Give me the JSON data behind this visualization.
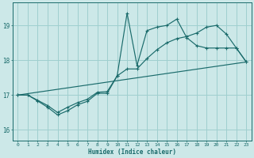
{
  "xlabel": "Humidex (Indice chaleur)",
  "bg_color": "#cce8e8",
  "grid_color": "#9fcfcf",
  "line_color": "#1a6b6b",
  "xlim": [
    -0.5,
    23.5
  ],
  "ylim": [
    15.7,
    19.65
  ],
  "yticks": [
    16,
    17,
    18,
    19
  ],
  "xticks": [
    0,
    1,
    2,
    3,
    4,
    5,
    6,
    7,
    8,
    9,
    10,
    11,
    12,
    13,
    14,
    15,
    16,
    17,
    18,
    19,
    20,
    21,
    22,
    23
  ],
  "line1_x": [
    0,
    1,
    2,
    3,
    4,
    5,
    6,
    7,
    8,
    9,
    10,
    11,
    12,
    13,
    14,
    15,
    16,
    17,
    18,
    19,
    20,
    21,
    22,
    23
  ],
  "line1_y": [
    17.0,
    17.0,
    16.83,
    16.65,
    16.43,
    16.55,
    16.72,
    16.82,
    17.05,
    17.05,
    17.55,
    19.35,
    17.85,
    18.85,
    18.95,
    19.0,
    19.18,
    18.65,
    18.42,
    18.35,
    18.35,
    18.35,
    18.35,
    17.95
  ],
  "line2_x": [
    0,
    1,
    2,
    3,
    4,
    5,
    6,
    7,
    8,
    9,
    10,
    11,
    12,
    13,
    14,
    15,
    16,
    17,
    18,
    19,
    20,
    21,
    22,
    23
  ],
  "line2_y": [
    17.0,
    17.0,
    16.85,
    16.7,
    16.5,
    16.65,
    16.78,
    16.88,
    17.08,
    17.1,
    17.55,
    17.75,
    17.75,
    18.05,
    18.3,
    18.5,
    18.62,
    18.68,
    18.78,
    18.95,
    19.0,
    18.75,
    18.35,
    17.95
  ],
  "line3_x": [
    0,
    23
  ],
  "line3_y": [
    17.0,
    17.95
  ]
}
